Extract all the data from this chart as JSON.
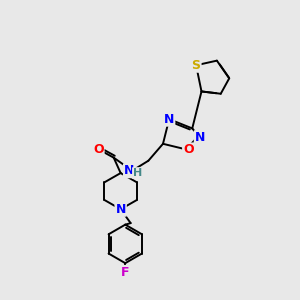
{
  "bg_color": "#e8e8e8",
  "bond_color": "#000000",
  "atom_colors": {
    "N": "#0000ff",
    "O": "#ff0000",
    "S": "#ccaa00",
    "F": "#cc00cc",
    "H": "#448888",
    "C": "#000000"
  },
  "figsize": [
    3.0,
    3.0
  ],
  "dpi": 100
}
